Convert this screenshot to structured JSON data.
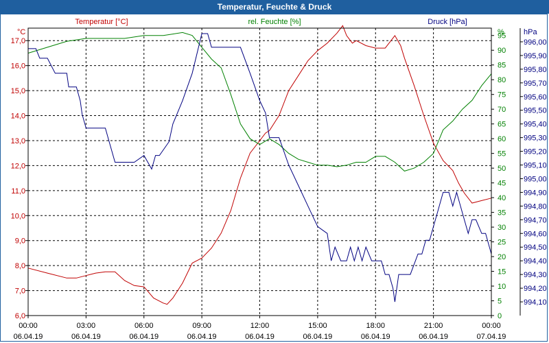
{
  "window": {
    "title": "Temperatur, Feuchte & Druck"
  },
  "colors": {
    "temperature": "#c00000",
    "humidity": "#008000",
    "pressure": "#000080",
    "axis": "#000000",
    "titlebar": "#1f5f9f"
  },
  "chart_data": {
    "type": "line",
    "title": "Temperatur, Feuchte & Druck",
    "grid": true,
    "x_labels": [
      {
        "time": "00:00",
        "date": "06.04.19"
      },
      {
        "time": "03:00",
        "date": "06.04.19"
      },
      {
        "time": "06:00",
        "date": "06.04.19"
      },
      {
        "time": "09:00",
        "date": "06.04.19"
      },
      {
        "time": "12:00",
        "date": "06.04.19"
      },
      {
        "time": "15:00",
        "date": "06.04.19"
      },
      {
        "time": "18:00",
        "date": "06.04.19"
      },
      {
        "time": "21:00",
        "date": "06.04.19"
      },
      {
        "time": "00:00",
        "date": "07.04.19"
      }
    ],
    "x_range_hours": [
      0,
      24
    ],
    "axes": {
      "temperature": {
        "label": "Temperatur [°C]",
        "unit": "°C",
        "ylim": [
          6.0,
          17.5
        ],
        "ticks": [
          "6,0",
          "7,0",
          "8,0",
          "9,0",
          "10,0",
          "11,0",
          "12,0",
          "13,0",
          "14,0",
          "15,0",
          "16,0",
          "17,0"
        ],
        "tick_values": [
          6,
          7,
          8,
          9,
          10,
          11,
          12,
          13,
          14,
          15,
          16,
          17
        ]
      },
      "humidity": {
        "label": "rel. Feuchte [%]",
        "unit": "%",
        "ylim": [
          0,
          97.5
        ],
        "ticks": [
          "0",
          "5",
          "10",
          "15",
          "20",
          "25",
          "30",
          "35",
          "40",
          "45",
          "50",
          "55",
          "60",
          "65",
          "70",
          "75",
          "80",
          "85",
          "90",
          "95"
        ],
        "tick_values": [
          0,
          5,
          10,
          15,
          20,
          25,
          30,
          35,
          40,
          45,
          50,
          55,
          60,
          65,
          70,
          75,
          80,
          85,
          90,
          95
        ]
      },
      "pressure": {
        "label": "Druck [hPa]",
        "unit": "hPa",
        "ylim": [
          994.0,
          996.1
        ],
        "ticks": [
          "994,10",
          "994,20",
          "994,30",
          "994,40",
          "994,50",
          "994,60",
          "994,70",
          "994,80",
          "994,90",
          "995,00",
          "995,10",
          "995,20",
          "995,30",
          "995,40",
          "995,50",
          "995,60",
          "995,70",
          "995,80",
          "995,90",
          "996,00"
        ],
        "tick_values": [
          994.1,
          994.2,
          994.3,
          994.4,
          994.5,
          994.6,
          994.7,
          994.8,
          994.9,
          995.0,
          995.1,
          995.2,
          995.3,
          995.4,
          995.5,
          995.6,
          995.7,
          995.8,
          995.9,
          996.0
        ]
      }
    },
    "series": [
      {
        "name": "Temperatur [°C]",
        "axis": "temperature",
        "color": "#c00000",
        "x": [
          0,
          1,
          2,
          2.5,
          3,
          3.5,
          4,
          4.5,
          5,
          5.5,
          6,
          6.5,
          7,
          7.2,
          7.5,
          8,
          8.5,
          9,
          9.5,
          10,
          10.5,
          11,
          11.5,
          12,
          12.3,
          12.5,
          13,
          13.5,
          14,
          14.5,
          15,
          15.5,
          16,
          16.3,
          16.5,
          16.8,
          17,
          17.5,
          18,
          18.5,
          18.8,
          19,
          19.3,
          19.5,
          20,
          20.5,
          21,
          21.5,
          22,
          22.3,
          22.6,
          23,
          23.5,
          24
        ],
        "values": [
          7.9,
          7.7,
          7.5,
          7.5,
          7.6,
          7.7,
          7.75,
          7.75,
          7.4,
          7.2,
          7.15,
          6.7,
          6.5,
          6.45,
          6.7,
          7.3,
          8.1,
          8.3,
          8.7,
          9.3,
          10.2,
          11.5,
          12.5,
          13.0,
          13.3,
          13.4,
          14.0,
          15.0,
          15.6,
          16.2,
          16.6,
          16.9,
          17.3,
          17.6,
          17.2,
          16.9,
          17.0,
          16.8,
          16.7,
          16.7,
          17.0,
          17.2,
          16.8,
          16.3,
          15.2,
          14.0,
          12.9,
          12.2,
          11.8,
          11.3,
          10.9,
          10.5,
          10.6,
          10.7
        ]
      },
      {
        "name": "rel. Feuchte [%]",
        "axis": "humidity",
        "color": "#008000",
        "x": [
          0,
          1,
          2,
          3,
          4,
          5,
          6,
          7,
          7.5,
          8,
          8.5,
          9,
          9.5,
          10,
          10.5,
          11,
          11.5,
          12,
          12.5,
          13,
          13.5,
          14,
          14.5,
          15,
          15.5,
          16,
          16.5,
          17,
          17.5,
          18,
          18.5,
          19,
          19.5,
          20,
          20.5,
          21,
          21.5,
          22,
          22.5,
          23,
          23.5,
          24
        ],
        "values": [
          89,
          91,
          93,
          94,
          94,
          94,
          95,
          95,
          95.5,
          96,
          95,
          91,
          87,
          84,
          75,
          65,
          60,
          58,
          60,
          58,
          55,
          53,
          52,
          51,
          51,
          50.5,
          51,
          52,
          52,
          54,
          54,
          52,
          49,
          50,
          52,
          55,
          63,
          66,
          70,
          73,
          78,
          82
        ]
      },
      {
        "name": "Druck [hPa]",
        "axis": "pressure",
        "color": "#000080",
        "x": [
          0,
          0.4,
          0.6,
          1,
          1.4,
          2,
          2.1,
          2.5,
          2.7,
          2.8,
          3,
          3.2,
          4,
          4.2,
          4.5,
          4.8,
          5,
          5.5,
          6,
          6.2,
          6.4,
          6.6,
          6.8,
          7.3,
          7.5,
          8,
          8.5,
          9,
          9.3,
          9.5,
          10.0,
          11.0,
          11.5,
          12.0,
          12.3,
          12.5,
          13.0,
          13.5,
          14.0,
          14.5,
          15.0,
          15.5,
          15.7,
          15.9,
          16.2,
          16.5,
          16.7,
          16.9,
          17.1,
          17.3,
          17.5,
          17.8,
          18.0,
          18.3,
          18.5,
          18.7,
          18.9,
          19.0,
          19.2,
          19.4,
          19.8,
          20.2,
          20.4,
          20.6,
          20.8,
          21.0,
          21.2,
          21.5,
          21.8,
          22.0,
          22.2,
          22.4,
          22.6,
          22.8,
          23.0,
          23.2,
          23.5,
          23.7,
          24.0
        ],
        "values": [
          995.95,
          995.95,
          995.88,
          995.88,
          995.77,
          995.77,
          995.67,
          995.67,
          995.57,
          995.47,
          995.37,
          995.37,
          995.37,
          995.27,
          995.12,
          995.12,
          995.12,
          995.12,
          995.17,
          995.12,
          995.07,
          995.17,
          995.17,
          995.27,
          995.4,
          995.57,
          995.77,
          996.06,
          996.06,
          995.96,
          995.96,
          995.96,
          995.77,
          995.57,
          995.48,
          995.3,
          995.3,
          995.1,
          994.95,
          994.8,
          994.65,
          994.6,
          994.4,
          994.5,
          994.4,
          994.4,
          994.5,
          994.4,
          994.5,
          994.4,
          994.5,
          994.4,
          994.4,
          994.4,
          994.3,
          994.3,
          994.2,
          994.1,
          994.3,
          994.3,
          994.3,
          994.45,
          994.45,
          994.55,
          994.55,
          994.65,
          994.75,
          994.9,
          994.9,
          994.8,
          994.9,
          994.8,
          994.7,
          994.6,
          994.7,
          994.7,
          994.6,
          994.6,
          994.45
        ]
      }
    ]
  }
}
